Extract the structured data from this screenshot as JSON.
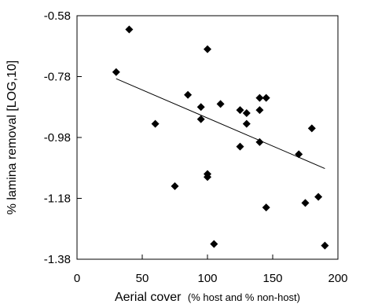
{
  "chart_data": {
    "type": "scatter",
    "title": "",
    "xlabel": "Aerial cover",
    "xlabel_note": "(% host and % non-host)",
    "ylabel": "% lamina removal [LOG,10]",
    "xlim": [
      0,
      200
    ],
    "ylim": [
      -1.38,
      -0.58
    ],
    "xticks": [
      "0",
      "50",
      "100",
      "150",
      "200"
    ],
    "yticks": [
      "-0.58",
      "-0.78",
      "-0.98",
      "-1.18",
      "-1.38"
    ],
    "grid": false,
    "legend": "none",
    "marker": "diamond",
    "colors": {
      "points": "#000000",
      "trendline": "#000000",
      "frame": "#000000"
    },
    "points": [
      {
        "x": 30,
        "y": -0.765
      },
      {
        "x": 40,
        "y": -0.625
      },
      {
        "x": 60,
        "y": -0.935
      },
      {
        "x": 75,
        "y": -1.14
      },
      {
        "x": 85,
        "y": -0.84
      },
      {
        "x": 95,
        "y": -0.88
      },
      {
        "x": 95,
        "y": -0.92
      },
      {
        "x": 100,
        "y": -0.69
      },
      {
        "x": 100,
        "y": -1.1
      },
      {
        "x": 100,
        "y": -1.11
      },
      {
        "x": 105,
        "y": -1.33
      },
      {
        "x": 110,
        "y": -0.87
      },
      {
        "x": 125,
        "y": -0.89
      },
      {
        "x": 125,
        "y": -1.01
      },
      {
        "x": 130,
        "y": -0.9
      },
      {
        "x": 130,
        "y": -0.935
      },
      {
        "x": 140,
        "y": -0.85
      },
      {
        "x": 140,
        "y": -0.89
      },
      {
        "x": 140,
        "y": -0.995
      },
      {
        "x": 145,
        "y": -0.85
      },
      {
        "x": 145,
        "y": -1.21
      },
      {
        "x": 170,
        "y": -1.035
      },
      {
        "x": 175,
        "y": -1.195
      },
      {
        "x": 180,
        "y": -0.95
      },
      {
        "x": 185,
        "y": -1.175
      },
      {
        "x": 190,
        "y": -1.335
      }
    ],
    "trendline": {
      "x": [
        30,
        190
      ],
      "y": [
        -0.787,
        -1.082
      ]
    }
  }
}
